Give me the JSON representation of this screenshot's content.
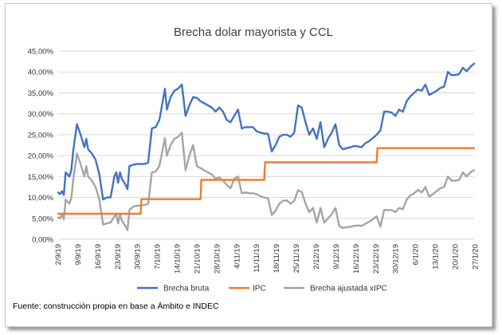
{
  "chart_data": {
    "type": "line",
    "title": "Brecha dolar mayorista y CCL",
    "xlabel": "",
    "ylabel": "",
    "ylim": [
      0,
      45
    ],
    "yticks": [
      "0,00%",
      "5,00%",
      "10,00%",
      "15,00%",
      "20,00%",
      "25,00%",
      "30,00%",
      "35,00%",
      "40,00%",
      "45,00%"
    ],
    "xticks": [
      "2/9/19",
      "9/9/19",
      "16/9/19",
      "23/9/19",
      "30/9/19",
      "7/10/19",
      "14/10/19",
      "21/10/19",
      "28/10/19",
      "4/11/19",
      "11/11/19",
      "18/11/19",
      "25/11/19",
      "2/12/19",
      "9/12/19",
      "16/12/19",
      "23/12/19",
      "30/12/19",
      "6/1/20",
      "13/1/20",
      "20/1/20",
      "27/1/20"
    ],
    "grid": true,
    "legend_position": "bottom",
    "colors": {
      "series1": "#4472C4",
      "series2": "#ED7D31",
      "series3": "#A5A5A5",
      "grid": "#D9D9D9"
    },
    "series": [
      {
        "name": "Brecha bruta",
        "points": [
          [
            0,
            11.2
          ],
          [
            0.5,
            10.8
          ],
          [
            1,
            11.5
          ],
          [
            1.5,
            10.6
          ],
          [
            2,
            16
          ],
          [
            3,
            15
          ],
          [
            3.5,
            16.5
          ],
          [
            4,
            21
          ],
          [
            5,
            27.5
          ],
          [
            6,
            25
          ],
          [
            7,
            22
          ],
          [
            7.5,
            24
          ],
          [
            8,
            21.5
          ],
          [
            9,
            20.5
          ],
          [
            10,
            19
          ],
          [
            11,
            15.5
          ],
          [
            12,
            9.5
          ],
          [
            13,
            10
          ],
          [
            14,
            10
          ],
          [
            15,
            15
          ],
          [
            15.5,
            16
          ],
          [
            16,
            13.5
          ],
          [
            16.5,
            16
          ],
          [
            17,
            14.5
          ],
          [
            18,
            13
          ],
          [
            18.5,
            12
          ],
          [
            19,
            17.5
          ],
          [
            20,
            17.8
          ],
          [
            21,
            18
          ],
          [
            23,
            18
          ],
          [
            24,
            18.3
          ],
          [
            25,
            26.5
          ],
          [
            26,
            26.8
          ],
          [
            27,
            28.5
          ],
          [
            28,
            33.5
          ],
          [
            28.5,
            36
          ],
          [
            29,
            31
          ],
          [
            30,
            34
          ],
          [
            31,
            35.5
          ],
          [
            32,
            36
          ],
          [
            33,
            37
          ],
          [
            34,
            29.5
          ],
          [
            35,
            32
          ],
          [
            36,
            34
          ],
          [
            37,
            33.8
          ],
          [
            38,
            33
          ],
          [
            39,
            32.5
          ],
          [
            40,
            32
          ],
          [
            41,
            31.5
          ],
          [
            42,
            30.5
          ],
          [
            43,
            31.5
          ],
          [
            44,
            30.5
          ],
          [
            45,
            28.5
          ],
          [
            46,
            28
          ],
          [
            47,
            29.5
          ],
          [
            48,
            31
          ],
          [
            49,
            26.5
          ],
          [
            50,
            26.8
          ],
          [
            51,
            26.8
          ],
          [
            52,
            26.8
          ],
          [
            53,
            25.8
          ],
          [
            54,
            25.5
          ],
          [
            55,
            25.3
          ],
          [
            56,
            25.2
          ],
          [
            57,
            21
          ],
          [
            58,
            22.5
          ],
          [
            59,
            24.5
          ],
          [
            60,
            25
          ],
          [
            61,
            25
          ],
          [
            62,
            24.5
          ],
          [
            63,
            25.5
          ],
          [
            64,
            32
          ],
          [
            65,
            31.5
          ],
          [
            66,
            28
          ],
          [
            67,
            25
          ],
          [
            68,
            26.5
          ],
          [
            69,
            24
          ],
          [
            70,
            28
          ],
          [
            71,
            22
          ],
          [
            72,
            24
          ],
          [
            73,
            25.5
          ],
          [
            74,
            27.5
          ],
          [
            75,
            22.5
          ],
          [
            76,
            21.5
          ],
          [
            77,
            21.8
          ],
          [
            78,
            22
          ],
          [
            79,
            22.3
          ],
          [
            80,
            22.2
          ],
          [
            81,
            22
          ],
          [
            82,
            23
          ],
          [
            83,
            23.5
          ],
          [
            84,
            24.2
          ],
          [
            85,
            25
          ],
          [
            86,
            26
          ],
          [
            87,
            30.5
          ],
          [
            88,
            30.5
          ],
          [
            89,
            30.3
          ],
          [
            90,
            29.5
          ],
          [
            91,
            31
          ],
          [
            92,
            30.5
          ],
          [
            93,
            33
          ],
          [
            94,
            34.2
          ],
          [
            95,
            35
          ],
          [
            96,
            35.8
          ],
          [
            97,
            35.5
          ],
          [
            98,
            37
          ],
          [
            99,
            34.5
          ],
          [
            100,
            35
          ],
          [
            101,
            35.5
          ],
          [
            102,
            36.2
          ],
          [
            103,
            36.5
          ],
          [
            104,
            40
          ],
          [
            105,
            39.2
          ],
          [
            106,
            39.3
          ],
          [
            107,
            39.5
          ],
          [
            108,
            41
          ],
          [
            109,
            40.2
          ],
          [
            110,
            41.2
          ],
          [
            111,
            42
          ]
        ]
      },
      {
        "name": "IPC",
        "points": [
          [
            0,
            6.1
          ],
          [
            22,
            6.1
          ],
          [
            22.2,
            9.6
          ],
          [
            38,
            9.6
          ],
          [
            38.2,
            14.2
          ],
          [
            55,
            14.2
          ],
          [
            55.2,
            18.4
          ],
          [
            75,
            18.4
          ],
          [
            75.2,
            18.4
          ],
          [
            85,
            18.4
          ],
          [
            85.2,
            21.8
          ],
          [
            111,
            21.8
          ]
        ]
      },
      {
        "name": "Brecha ajustada xIPC",
        "points": [
          [
            0,
            5.2
          ],
          [
            0.5,
            5
          ],
          [
            1,
            6
          ],
          [
            1.5,
            4.8
          ],
          [
            2,
            9.5
          ],
          [
            3,
            8.5
          ],
          [
            3.5,
            9.8
          ],
          [
            4,
            14
          ],
          [
            5,
            20.5
          ],
          [
            6,
            18
          ],
          [
            7,
            15
          ],
          [
            7.5,
            17.5
          ],
          [
            8,
            15
          ],
          [
            9,
            14
          ],
          [
            10,
            12.5
          ],
          [
            11,
            9.5
          ],
          [
            12,
            3.5
          ],
          [
            13,
            3.8
          ],
          [
            14,
            4
          ],
          [
            15,
            5.5
          ],
          [
            15.5,
            6
          ],
          [
            16,
            3.8
          ],
          [
            16.5,
            6
          ],
          [
            17,
            4.5
          ],
          [
            18,
            3
          ],
          [
            18.5,
            2.2
          ],
          [
            19,
            7
          ],
          [
            20,
            7.8
          ],
          [
            21,
            8
          ],
          [
            23,
            8.2
          ],
          [
            24,
            8.5
          ],
          [
            25,
            16
          ],
          [
            26,
            16.2
          ],
          [
            27,
            17.5
          ],
          [
            28,
            22
          ],
          [
            28.5,
            24.2
          ],
          [
            29,
            20
          ],
          [
            30,
            22.5
          ],
          [
            31,
            24
          ],
          [
            32,
            24.5
          ],
          [
            33,
            25.5
          ],
          [
            34,
            16.5
          ],
          [
            35,
            20
          ],
          [
            36,
            22.5
          ],
          [
            37,
            17.5
          ],
          [
            38,
            17
          ],
          [
            39,
            16.5
          ],
          [
            40,
            16
          ],
          [
            41,
            15.5
          ],
          [
            42,
            14.5
          ],
          [
            43,
            14.8
          ],
          [
            44,
            14
          ],
          [
            45,
            13
          ],
          [
            46,
            12.2
          ],
          [
            47,
            14.5
          ],
          [
            48,
            15
          ],
          [
            49,
            11
          ],
          [
            50,
            11.2
          ],
          [
            51,
            11
          ],
          [
            52,
            11
          ],
          [
            53,
            10.8
          ],
          [
            54,
            10.3
          ],
          [
            55,
            10
          ],
          [
            56,
            9.8
          ],
          [
            57,
            5.8
          ],
          [
            58,
            6.8
          ],
          [
            59,
            8.5
          ],
          [
            60,
            9.2
          ],
          [
            61,
            9.3
          ],
          [
            62,
            8.5
          ],
          [
            63,
            9.2
          ],
          [
            64,
            11.7
          ],
          [
            65,
            11.3
          ],
          [
            66,
            8.5
          ],
          [
            67,
            6.5
          ],
          [
            68,
            7.5
          ],
          [
            69,
            4
          ],
          [
            70,
            7.5
          ],
          [
            71,
            4
          ],
          [
            72,
            5
          ],
          [
            73,
            6
          ],
          [
            74,
            7.5
          ],
          [
            75,
            3.2
          ],
          [
            76,
            2.7
          ],
          [
            77,
            2.9
          ],
          [
            78,
            3
          ],
          [
            79,
            3.2
          ],
          [
            80,
            3.3
          ],
          [
            81,
            3.2
          ],
          [
            82,
            3.7
          ],
          [
            83,
            4.2
          ],
          [
            84,
            4.8
          ],
          [
            85,
            5.5
          ],
          [
            86,
            3
          ],
          [
            87,
            7
          ],
          [
            88,
            7
          ],
          [
            89,
            7
          ],
          [
            90,
            6.5
          ],
          [
            91,
            7.5
          ],
          [
            92,
            7.2
          ],
          [
            93,
            9.5
          ],
          [
            94,
            10.5
          ],
          [
            95,
            11
          ],
          [
            96,
            11.8
          ],
          [
            97,
            11.2
          ],
          [
            98,
            12.5
          ],
          [
            99,
            10.2
          ],
          [
            100,
            10.8
          ],
          [
            101,
            11.5
          ],
          [
            102,
            12.2
          ],
          [
            103,
            12.5
          ],
          [
            104,
            15
          ],
          [
            105,
            14
          ],
          [
            106,
            14
          ],
          [
            107,
            14.2
          ],
          [
            108,
            16
          ],
          [
            109,
            15
          ],
          [
            110,
            16
          ],
          [
            111,
            16.5
          ]
        ]
      }
    ]
  },
  "source_note": "Fuente: construcción propia en base a Ámbito e INDEC"
}
